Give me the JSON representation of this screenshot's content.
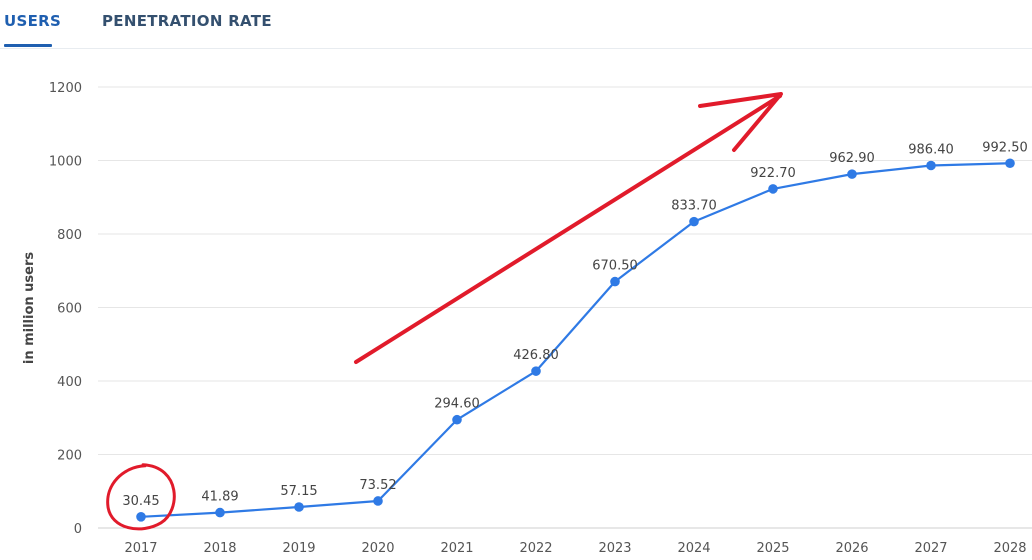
{
  "tabs": [
    {
      "label": "USERS",
      "active": true
    },
    {
      "label": "PENETRATION RATE",
      "active": false
    }
  ],
  "colors": {
    "line": "#2f7ae5",
    "tab_active": "#1f5fb0",
    "annotation": "#e11b2b",
    "grid": "#e6e6e6"
  },
  "chart_data": {
    "type": "line",
    "title": "",
    "xlabel": "",
    "ylabel": "in million users",
    "x": [
      "2017",
      "2018",
      "2019",
      "2020",
      "2021",
      "2022",
      "2023",
      "2024",
      "2025",
      "2026",
      "2027",
      "2028"
    ],
    "series": [
      {
        "values": [
          30.45,
          41.89,
          57.15,
          73.52,
          294.6,
          426.8,
          670.5,
          833.7,
          922.7,
          962.9,
          986.4,
          992.5
        ],
        "labels": [
          "30.45",
          "41.89",
          "57.15",
          "73.52",
          "294.60",
          "426.80",
          "670.50",
          "833.70",
          "922.70",
          "962.90",
          "986.40",
          "992.50"
        ]
      }
    ],
    "yticks": [
      0,
      200,
      400,
      600,
      800,
      1000,
      1200
    ],
    "ylim": [
      0,
      1200
    ],
    "grid": true,
    "annotations": [
      {
        "type": "circle",
        "target": "2017"
      },
      {
        "type": "arrow",
        "direction": "up-right"
      }
    ]
  }
}
